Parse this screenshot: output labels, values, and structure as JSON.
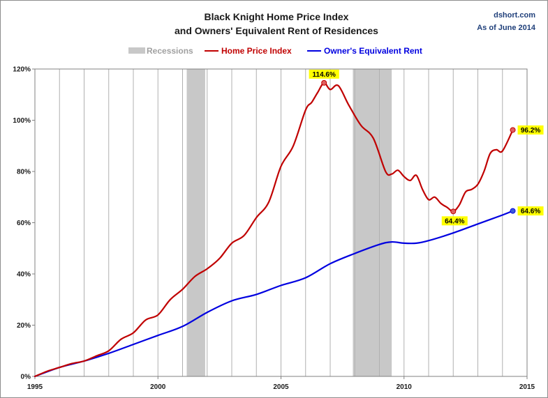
{
  "chart_data": {
    "type": "line",
    "title": [
      "Black Knight Home Price Index",
      "and Owners' Equivalent Rent of Residences"
    ],
    "source": "dshort.com",
    "as_of": "As of June 2014",
    "xlim": [
      1995,
      2015
    ],
    "ylim": [
      0,
      120
    ],
    "x_ticks": [
      1995,
      2000,
      2005,
      2010,
      2015
    ],
    "y_ticks": [
      0,
      20,
      40,
      60,
      80,
      100,
      120
    ],
    "y_tick_labels": [
      "0%",
      "20%",
      "40%",
      "60%",
      "80%",
      "100%",
      "120%"
    ],
    "grid": {
      "vertical": true,
      "horizontal": false
    },
    "legend": {
      "placement": "top-center",
      "entries": [
        {
          "label": "Recessions",
          "color": "#c8c8c8"
        },
        {
          "label": "Home Price Index",
          "color": "#c00000"
        },
        {
          "label": "Owner's Equivalent Rent",
          "color": "#0000e0"
        }
      ]
    },
    "recessions": [
      [
        2001.17,
        2001.92
      ],
      [
        2007.92,
        2009.5
      ]
    ],
    "series": [
      {
        "name": "Home Price Index",
        "color": "#c00000",
        "x": [
          1995.0,
          1995.5,
          1996.0,
          1996.5,
          1997.0,
          1997.5,
          1998.0,
          1998.5,
          1999.0,
          1999.5,
          2000.0,
          2000.5,
          2001.0,
          2001.5,
          2002.0,
          2002.5,
          2003.0,
          2003.5,
          2004.0,
          2004.5,
          2005.0,
          2005.5,
          2006.0,
          2006.25,
          2006.5,
          2006.75,
          2007.0,
          2007.33,
          2007.75,
          2008.25,
          2008.75,
          2009.25,
          2009.5,
          2009.75,
          2010.0,
          2010.25,
          2010.5,
          2010.75,
          2011.0,
          2011.25,
          2011.5,
          2011.75,
          2012.0,
          2012.25,
          2012.5,
          2012.75,
          2013.0,
          2013.25,
          2013.5,
          2013.75,
          2014.0,
          2014.42
        ],
        "values": [
          0,
          2,
          3.5,
          5,
          6,
          8,
          10,
          14.5,
          17,
          22,
          24,
          30,
          34,
          39,
          42,
          46,
          52,
          55,
          62,
          68,
          82,
          90,
          104,
          107,
          111,
          114.6,
          112,
          113.5,
          106,
          98,
          93,
          80,
          79,
          80.5,
          78,
          76.5,
          78.5,
          73,
          69,
          70,
          67.5,
          66,
          64.4,
          67,
          72,
          73,
          75,
          80,
          87,
          88.5,
          88,
          96.2
        ]
      },
      {
        "name": "Owner's Equivalent Rent",
        "color": "#0000e0",
        "x": [
          1995.0,
          1996.0,
          1997.0,
          1998.0,
          1999.0,
          2000.0,
          2001.0,
          2002.0,
          2003.0,
          2004.0,
          2005.0,
          2006.0,
          2007.0,
          2008.0,
          2009.0,
          2009.5,
          2010.0,
          2010.5,
          2011.0,
          2012.0,
          2013.0,
          2014.0,
          2014.42
        ],
        "values": [
          0,
          3.5,
          6,
          9,
          12.5,
          16,
          19.5,
          25,
          29.5,
          32,
          35.5,
          38.5,
          44,
          48,
          51.5,
          52.5,
          52,
          52,
          53,
          56,
          59.5,
          63,
          64.6
        ]
      }
    ],
    "annotations": [
      {
        "text": "114.6%",
        "x": 2006.75,
        "y": 114.6,
        "series": "Home Price Index",
        "position": "above"
      },
      {
        "text": "96.2%",
        "x": 2014.42,
        "y": 96.2,
        "series": "Home Price Index",
        "position": "right"
      },
      {
        "text": "64.4%",
        "x": 2012.0,
        "y": 64.4,
        "series": "Home Price Index",
        "position": "below"
      },
      {
        "text": "64.6%",
        "x": 2014.42,
        "y": 64.6,
        "series": "Owner's Equivalent Rent",
        "position": "right"
      }
    ],
    "callout_fill": "#ffff00"
  }
}
